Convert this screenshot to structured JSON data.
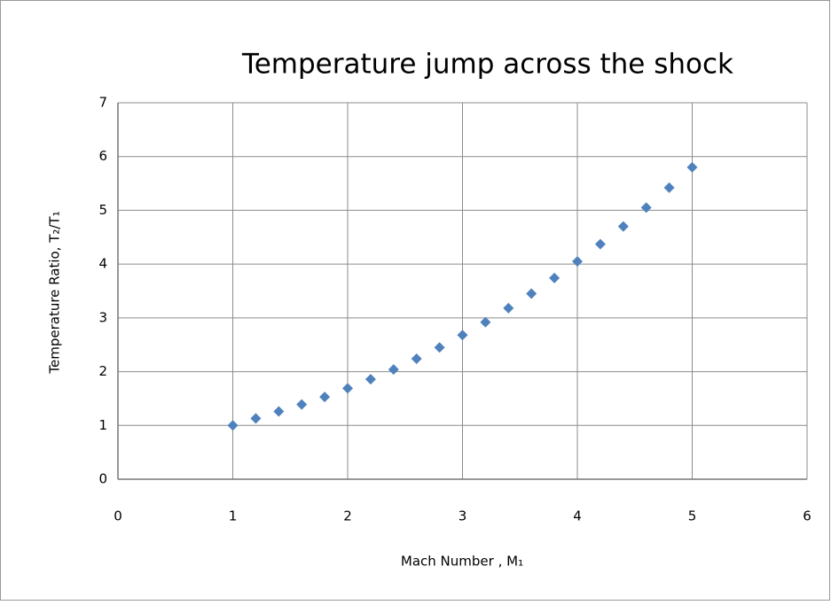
{
  "chart_data": {
    "type": "scatter",
    "title": "Temperature jump across the shock",
    "xlabel": "Mach Number , M₁",
    "ylabel": "Temperature Ratio, T₂/T₁",
    "x": [
      1.0,
      1.2,
      1.4,
      1.6,
      1.8,
      2.0,
      2.2,
      2.4,
      2.6,
      2.8,
      3.0,
      3.2,
      3.4,
      3.6,
      3.8,
      4.0,
      4.2,
      4.4,
      4.6,
      4.8,
      5.0
    ],
    "values": [
      1.0,
      1.13,
      1.26,
      1.39,
      1.53,
      1.69,
      1.86,
      2.04,
      2.24,
      2.45,
      2.68,
      2.92,
      3.18,
      3.45,
      3.74,
      4.05,
      4.37,
      4.7,
      5.05,
      5.42,
      5.8
    ],
    "color": "#4f81bd",
    "xlim": [
      0,
      6
    ],
    "xticks": [
      0,
      1,
      2,
      3,
      4,
      5,
      6
    ],
    "ylim": [
      0,
      7
    ],
    "yticks": [
      0,
      1,
      2,
      3,
      4,
      5,
      6,
      7
    ],
    "grid": true
  }
}
